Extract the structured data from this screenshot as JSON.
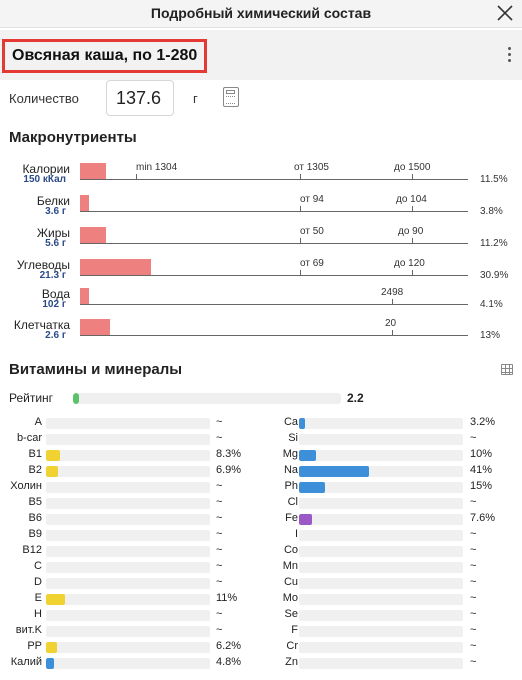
{
  "header": {
    "title": "Подробный химический состав"
  },
  "product": {
    "title": "Овсяная каша, по 1-280"
  },
  "quantity": {
    "label": "Количество",
    "value": "137.6",
    "unit": "г"
  },
  "macros": {
    "title": "Макронутриенты",
    "rows": [
      {
        "name": "Калории",
        "value": "150 кКал",
        "percent": "11.5%",
        "fill": 0.115,
        "markers": [
          {
            "label": "min 1304"
          },
          {
            "label": "от 1305"
          },
          {
            "label": "до 1500"
          }
        ]
      },
      {
        "name": "Белки",
        "value": "3.6 г",
        "percent": "3.8%",
        "fill": 0.038,
        "markers": [
          {
            "label": "от 94"
          },
          {
            "label": "до 104"
          }
        ]
      },
      {
        "name": "Жиры",
        "value": "5.6 г",
        "percent": "11.2%",
        "fill": 0.112,
        "markers": [
          {
            "label": "от 50"
          },
          {
            "label": "до 90"
          }
        ]
      },
      {
        "name": "Углеводы",
        "value": "21.3 г",
        "percent": "30.9%",
        "fill": 0.309,
        "markers": [
          {
            "label": "от 69"
          },
          {
            "label": "до 120"
          }
        ]
      },
      {
        "name": "Вода",
        "value": "102 г",
        "percent": "4.1%",
        "fill": 0.041,
        "markers": [
          {
            "label": "2498"
          }
        ]
      },
      {
        "name": "Клетчатка",
        "value": "2.6 г",
        "percent": "13%",
        "fill": 0.13,
        "markers": [
          {
            "label": "20"
          }
        ]
      }
    ]
  },
  "vitamins": {
    "title": "Витамины и минералы",
    "rating_label": "Рейтинг",
    "rating_value": "2.2",
    "rating_fill": 0.022,
    "colors": {
      "yellow": "#f0d332",
      "blue": "#3d8fda",
      "purple": "#9b59c8",
      "green": "#5cc36a",
      "macro_bar": "#ee8080",
      "highlight": "#e53935"
    },
    "left": [
      {
        "name": "A",
        "value": "~",
        "fill": 0,
        "color": "yellow"
      },
      {
        "name": "b-car",
        "value": "~",
        "fill": 0,
        "color": "yellow"
      },
      {
        "name": "B1",
        "value": "8.3%",
        "fill": 0.083,
        "color": "yellow"
      },
      {
        "name": "B2",
        "value": "6.9%",
        "fill": 0.069,
        "color": "yellow"
      },
      {
        "name": "Холин",
        "value": "~",
        "fill": 0,
        "color": "yellow"
      },
      {
        "name": "B5",
        "value": "~",
        "fill": 0,
        "color": "yellow"
      },
      {
        "name": "B6",
        "value": "~",
        "fill": 0,
        "color": "yellow"
      },
      {
        "name": "B9",
        "value": "~",
        "fill": 0,
        "color": "yellow"
      },
      {
        "name": "B12",
        "value": "~",
        "fill": 0,
        "color": "yellow"
      },
      {
        "name": "C",
        "value": "~",
        "fill": 0,
        "color": "yellow"
      },
      {
        "name": "D",
        "value": "~",
        "fill": 0,
        "color": "yellow"
      },
      {
        "name": "E",
        "value": "11%",
        "fill": 0.11,
        "color": "yellow"
      },
      {
        "name": "H",
        "value": "~",
        "fill": 0,
        "color": "yellow"
      },
      {
        "name": "вит.K",
        "value": "~",
        "fill": 0,
        "color": "yellow"
      },
      {
        "name": "PP",
        "value": "6.2%",
        "fill": 0.062,
        "color": "yellow"
      },
      {
        "name": "Калий",
        "value": "4.8%",
        "fill": 0.048,
        "color": "blue"
      }
    ],
    "right": [
      {
        "name": "Ca",
        "value": "3.2%",
        "fill": 0.032,
        "color": "blue"
      },
      {
        "name": "Si",
        "value": "~",
        "fill": 0,
        "color": "blue"
      },
      {
        "name": "Mg",
        "value": "10%",
        "fill": 0.1,
        "color": "blue"
      },
      {
        "name": "Na",
        "value": "41%",
        "fill": 0.41,
        "color": "blue"
      },
      {
        "name": "Ph",
        "value": "15%",
        "fill": 0.15,
        "color": "blue"
      },
      {
        "name": "Cl",
        "value": "~",
        "fill": 0,
        "color": "blue"
      },
      {
        "name": "Fe",
        "value": "7.6%",
        "fill": 0.076,
        "color": "purple"
      },
      {
        "name": "I",
        "value": "~",
        "fill": 0,
        "color": "blue"
      },
      {
        "name": "Co",
        "value": "~",
        "fill": 0,
        "color": "blue"
      },
      {
        "name": "Mn",
        "value": "~",
        "fill": 0,
        "color": "blue"
      },
      {
        "name": "Cu",
        "value": "~",
        "fill": 0,
        "color": "blue"
      },
      {
        "name": "Mo",
        "value": "~",
        "fill": 0,
        "color": "blue"
      },
      {
        "name": "Se",
        "value": "~",
        "fill": 0,
        "color": "blue"
      },
      {
        "name": "F",
        "value": "~",
        "fill": 0,
        "color": "blue"
      },
      {
        "name": "Cr",
        "value": "~",
        "fill": 0,
        "color": "blue"
      },
      {
        "name": "Zn",
        "value": "~",
        "fill": 0,
        "color": "blue"
      }
    ]
  }
}
